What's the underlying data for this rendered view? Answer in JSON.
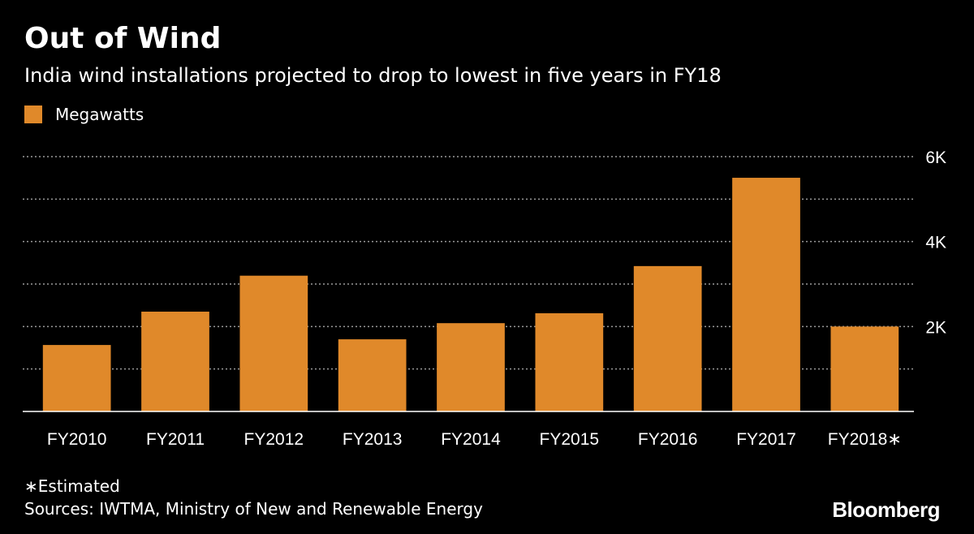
{
  "header": {
    "title": "Out of Wind",
    "subtitle": "India wind installations projected to drop to lowest in five years in FY18"
  },
  "legend": {
    "label": "Megawatts",
    "color": "#e0892a"
  },
  "footer": {
    "footnote": "∗Estimated",
    "source": "Sources: IWTMA, Ministry of New and Renewable Energy",
    "logo": "Bloomberg"
  },
  "chart_data": {
    "type": "bar",
    "categories": [
      "FY2010",
      "FY2011",
      "FY2012",
      "FY2013",
      "FY2014",
      "FY2015",
      "FY2016",
      "FY2017",
      "FY2018∗"
    ],
    "series": [
      {
        "name": "Megawatts",
        "values": [
          1565,
          2350,
          3197,
          1699,
          2079,
          2312,
          3423,
          5502,
          2000
        ]
      }
    ],
    "title": "Out of Wind",
    "subtitle": "India wind installations projected to drop to lowest in five years in FY18",
    "ylim": [
      0,
      6000
    ],
    "yticks": [
      2000,
      4000,
      6000
    ],
    "ytick_labels": [
      "2K",
      "4K",
      "6K"
    ],
    "grid": true,
    "legend_position": "top-left",
    "bar_color": "#e0892a"
  }
}
